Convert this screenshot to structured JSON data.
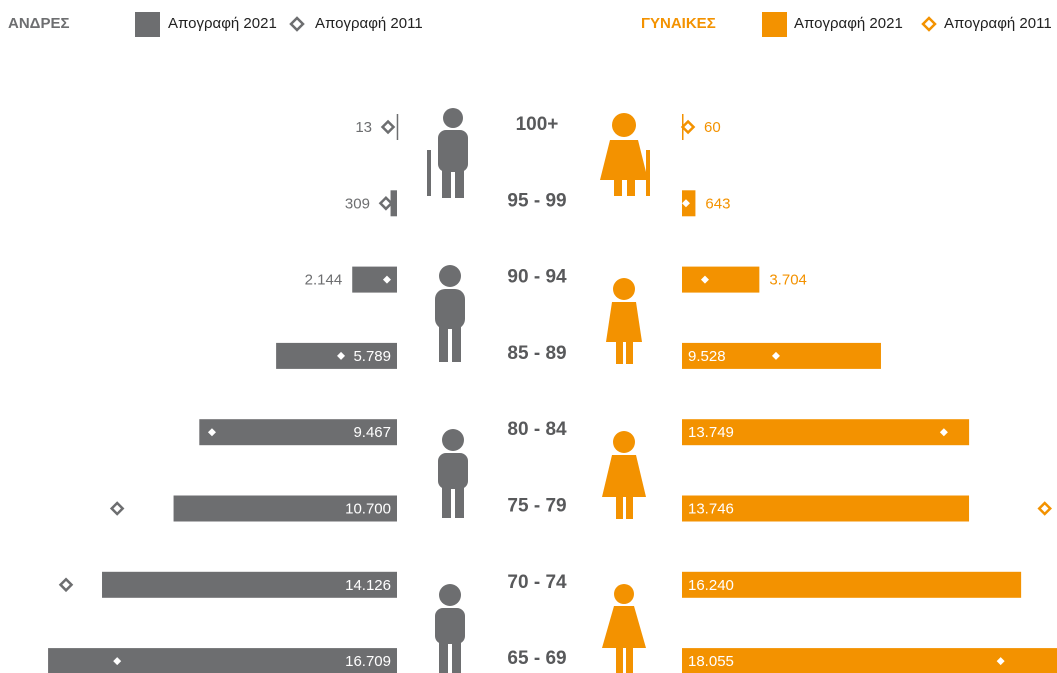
{
  "chart_data": {
    "type": "pyramid",
    "categories": [
      "100+",
      "95 - 99",
      "90 - 94",
      "85 - 89",
      "80 - 84",
      "75 - 79",
      "70 - 74",
      "65 - 69"
    ],
    "xlim": [
      0,
      17000
    ],
    "groups": [
      {
        "title": "ΑΝΔΡΕΣ",
        "color": "#6d6e70",
        "side": "left",
        "series": [
          {
            "name": "Απογραφή 2021",
            "values": [
              13,
              309,
              2144,
              5789,
              9467,
              10700,
              14126,
              16709
            ],
            "value_labels": [
              "13",
              "309",
              "2.144",
              "5.789",
              "9.467",
              "10.700",
              "14.126",
              "16.709"
            ]
          },
          {
            "name": "Απογραφή 2011",
            "values": [
              430,
              530,
              480,
              2680,
              8860,
              13400,
              15850,
              13400
            ]
          }
        ]
      },
      {
        "title": "ΓΥΝΑΙΚΕΣ",
        "color": "#f39200",
        "side": "right",
        "series": [
          {
            "name": "Απογραφή 2021",
            "values": [
              60,
              643,
              3704,
              9528,
              13749,
              13746,
              16240,
              18055
            ],
            "value_labels": [
              "60",
              "643",
              "3.704",
              "9.528",
              "13.749",
              "13.746",
              "16.240",
              "18.055"
            ]
          },
          {
            "name": "Απογραφή 2011",
            "values": [
              290,
              190,
              1100,
              4500,
              12540,
              17370,
              null,
              15260
            ]
          }
        ]
      }
    ]
  }
}
